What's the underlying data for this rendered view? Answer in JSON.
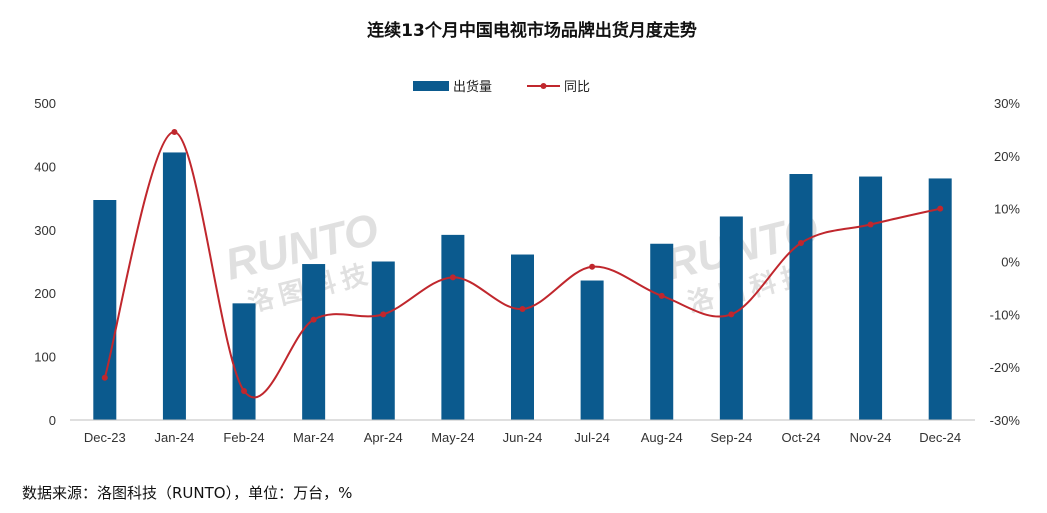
{
  "colors": {
    "bar": "#0b5a8e",
    "line": "#c0272d",
    "axis": "#bfbfbf"
  },
  "watermark": {
    "latin": "RUNTO",
    "chinese": "洛图科技"
  },
  "source_note": "数据来源：洛图科技（RUNTO），单位：万台，%",
  "chart_data": {
    "type": "bar",
    "title": "连续13个月中国电视市场品牌出货月度走势",
    "categories": [
      "Dec-23",
      "Jan-24",
      "Feb-24",
      "Mar-24",
      "Apr-24",
      "May-24",
      "Jun-24",
      "Jul-24",
      "Aug-24",
      "Sep-24",
      "Oct-24",
      "Nov-24",
      "Dec-24"
    ],
    "series": [
      {
        "name": "出货量",
        "type": "bar",
        "axis": "left",
        "values": [
          347,
          422,
          184,
          246,
          250,
          292,
          261,
          220,
          278,
          321,
          388,
          384,
          381
        ]
      },
      {
        "name": "同比",
        "type": "line",
        "axis": "right",
        "smooth": true,
        "values": [
          -22,
          24.5,
          -24.5,
          -11,
          -10,
          -3,
          -9,
          -1,
          -6.5,
          -10,
          3.5,
          7,
          10
        ]
      }
    ],
    "ylim_left": [
      0,
      500
    ],
    "yticks_left": [
      "0",
      "100",
      "200",
      "300",
      "400",
      "500"
    ],
    "ylim_right": [
      -30,
      30
    ],
    "yticks_right": [
      "-30%",
      "-20%",
      "-10%",
      "0%",
      "10%",
      "20%",
      "30%"
    ],
    "legend_position": "top",
    "grid": false
  }
}
